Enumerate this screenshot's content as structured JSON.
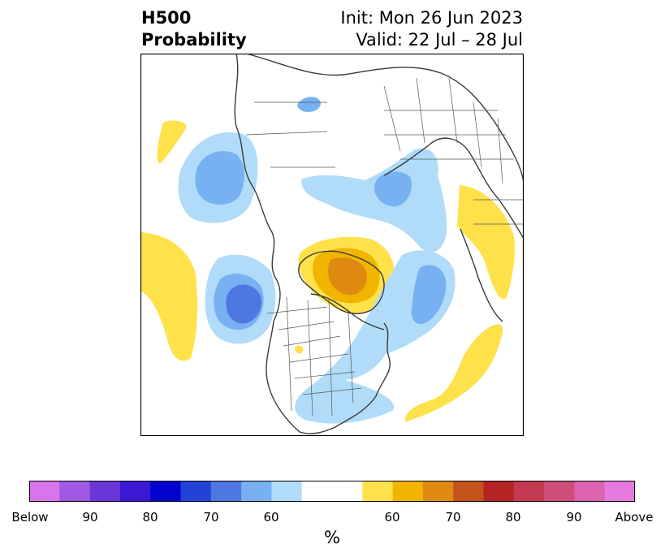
{
  "header": {
    "variable": "H500",
    "product": "Probability",
    "init": "Init: Mon 26 Jun 2023",
    "valid": "Valid: 22 Jul – 28 Jul"
  },
  "colorbar": {
    "unit": "%",
    "tick_labels": [
      "Below",
      "90",
      "80",
      "70",
      "60",
      "60",
      "70",
      "80",
      "90",
      "Above"
    ],
    "colors": [
      "#d875ea",
      "#9f59e3",
      "#6a36d7",
      "#3b18d4",
      "#0202cf",
      "#2342d7",
      "#4f77e2",
      "#77b1f2",
      "#b0dcf9",
      "#ffffff",
      "#ffe14a",
      "#f1b500",
      "#df8b12",
      "#c5531c",
      "#b52425",
      "#c23a51",
      "#cd4d7b",
      "#dc63ae",
      "#e67ae0"
    ]
  },
  "map": {
    "projection": "north-polar-stereographic",
    "anomaly_colors": {
      "below_60": "#b0dcf9",
      "below_70": "#77b1f2",
      "below_80": "#4f77e2",
      "above_60": "#ffe14a",
      "above_70": "#f1b500",
      "above_80": "#df8b12"
    }
  }
}
